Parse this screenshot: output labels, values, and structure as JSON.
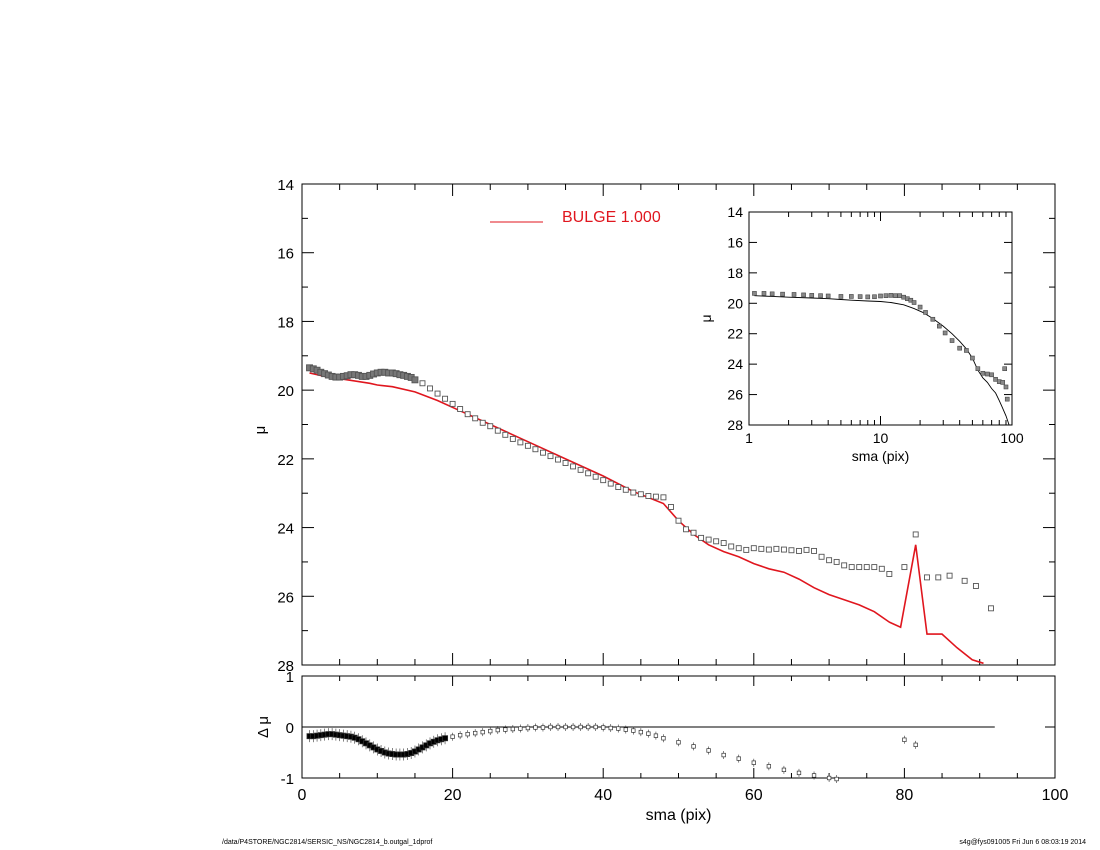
{
  "title": "SERSIC_NS/NGC2814_b.outgal",
  "footer": {
    "path": "/data/P4STORE/NGC2814/SERSIC_NS/NGC2814_b.outgal_1dprof",
    "stamp": "s4g@fys091005  Fri Jun  6 08:03:19 2014"
  },
  "colors": {
    "model": "#e0161e",
    "data": "#555555",
    "axis": "#000000",
    "residual_dense": "#000000"
  },
  "chart_data": [
    {
      "id": "main",
      "type": "scatter",
      "xlabel": "",
      "ylabel": "μ",
      "xlim": [
        0,
        100
      ],
      "ylim": [
        28,
        14
      ],
      "xticks": [
        "0",
        "20",
        "40",
        "60",
        "80",
        "100"
      ],
      "yticks": [
        "14",
        "16",
        "18",
        "20",
        "22",
        "24",
        "26",
        "28"
      ],
      "legend": {
        "label": "BULGE  1.000",
        "placement": "top"
      },
      "series": [
        {
          "name": "BULGE  1.000",
          "kind": "line",
          "x": [
            1,
            3,
            6,
            9,
            10,
            12,
            15,
            18,
            21,
            25,
            30,
            35,
            40,
            44,
            48,
            50,
            52,
            54,
            56,
            58,
            60,
            62,
            64,
            66,
            68,
            70,
            72,
            74,
            76,
            78,
            79.5,
            81.5,
            83,
            85,
            87,
            89,
            90.5
          ],
          "y": [
            19.5,
            19.6,
            19.7,
            19.8,
            19.85,
            19.9,
            20.05,
            20.3,
            20.6,
            21.0,
            21.5,
            22.0,
            22.5,
            22.95,
            23.3,
            23.8,
            24.2,
            24.5,
            24.7,
            24.85,
            25.05,
            25.2,
            25.3,
            25.5,
            25.75,
            25.95,
            26.1,
            26.25,
            26.45,
            26.75,
            26.9,
            24.5,
            27.1,
            27.1,
            27.5,
            27.85,
            27.95
          ]
        },
        {
          "name": "",
          "kind": "points",
          "x": [
            1,
            1.5,
            2,
            2.5,
            3,
            3.5,
            4,
            4.5,
            5,
            5.5,
            6,
            6.5,
            7,
            7.5,
            8,
            8.5,
            9,
            9.5,
            10,
            10.5,
            11,
            11.5,
            12,
            12.5,
            13,
            13.5,
            14,
            14.5,
            15,
            16,
            17,
            18,
            19,
            20,
            21,
            22,
            23,
            24,
            25,
            26,
            27,
            28,
            29,
            30,
            31,
            32,
            33,
            34,
            35,
            36,
            37,
            38,
            39,
            40,
            41,
            42,
            43,
            44,
            45,
            46,
            47,
            48,
            49,
            50,
            51,
            52,
            53,
            54,
            55,
            56,
            57,
            58,
            59,
            60,
            61,
            62,
            63,
            64,
            65,
            66,
            67,
            68,
            69,
            70,
            71,
            72,
            73,
            74,
            75,
            76,
            77,
            78,
            80,
            81.5,
            83,
            84.5,
            86,
            88,
            89.5,
            91.5
          ],
          "y": [
            19.35,
            19.38,
            19.42,
            19.48,
            19.52,
            19.56,
            19.6,
            19.62,
            19.62,
            19.6,
            19.58,
            19.55,
            19.55,
            19.57,
            19.6,
            19.6,
            19.57,
            19.53,
            19.5,
            19.48,
            19.48,
            19.5,
            19.5,
            19.52,
            19.55,
            19.57,
            19.6,
            19.63,
            19.7,
            19.8,
            19.95,
            20.1,
            20.25,
            20.4,
            20.55,
            20.7,
            20.82,
            20.95,
            21.05,
            21.18,
            21.3,
            21.42,
            21.52,
            21.62,
            21.72,
            21.82,
            21.92,
            22.02,
            22.12,
            22.22,
            22.32,
            22.42,
            22.52,
            22.62,
            22.72,
            22.82,
            22.9,
            22.98,
            23.03,
            23.08,
            23.1,
            23.12,
            23.4,
            23.8,
            24.05,
            24.15,
            24.3,
            24.35,
            24.4,
            24.45,
            24.55,
            24.6,
            24.65,
            24.6,
            24.62,
            24.64,
            24.62,
            24.64,
            24.66,
            24.68,
            24.65,
            24.68,
            24.85,
            24.95,
            25.0,
            25.1,
            25.15,
            25.15,
            25.15,
            25.15,
            25.2,
            25.35,
            25.15,
            24.2,
            25.45,
            25.45,
            25.4,
            25.55,
            25.7,
            26.35
          ]
        }
      ]
    },
    {
      "id": "inset",
      "type": "line",
      "xlabel": "sma (pix)",
      "ylabel": "μ",
      "xscale": "log",
      "xlim": [
        1,
        100
      ],
      "ylim": [
        28,
        14
      ],
      "xticks": [
        "1",
        "10",
        "100"
      ],
      "yticks": [
        "14",
        "16",
        "18",
        "20",
        "22",
        "24",
        "26",
        "28"
      ],
      "series": [
        {
          "name": "",
          "kind": "points",
          "x": [
            1.1,
            1.3,
            1.5,
            1.8,
            2.2,
            2.6,
            3,
            3.5,
            4,
            5,
            6,
            7,
            8,
            9,
            10,
            11,
            12,
            13,
            14,
            15,
            16,
            17,
            18,
            20,
            22,
            25,
            28,
            31,
            35,
            40,
            45,
            50,
            55,
            60,
            65,
            70,
            75,
            80,
            85,
            88,
            90,
            92
          ],
          "y": [
            19.35,
            19.35,
            19.38,
            19.4,
            19.42,
            19.45,
            19.48,
            19.5,
            19.52,
            19.55,
            19.55,
            19.56,
            19.58,
            19.57,
            19.52,
            19.5,
            19.48,
            19.5,
            19.5,
            19.6,
            19.7,
            19.8,
            19.95,
            20.25,
            20.6,
            21.05,
            21.5,
            21.95,
            22.45,
            22.95,
            23.1,
            23.6,
            24.3,
            24.6,
            24.65,
            24.7,
            25.0,
            25.15,
            25.2,
            24.3,
            25.5,
            26.3
          ]
        },
        {
          "name": "",
          "kind": "line",
          "x": [
            1.1,
            1.5,
            2,
            3,
            4,
            5,
            6,
            8,
            10,
            12,
            15,
            18,
            21,
            25,
            30,
            35,
            40,
            45,
            50,
            55,
            60,
            65,
            70,
            75,
            80,
            84,
            90,
            95
          ],
          "y": [
            19.5,
            19.55,
            19.6,
            19.65,
            19.7,
            19.75,
            19.8,
            19.85,
            19.88,
            19.95,
            20.1,
            20.35,
            20.6,
            21.0,
            21.5,
            22.0,
            22.5,
            23.0,
            23.6,
            24.4,
            24.9,
            25.2,
            25.6,
            25.9,
            26.4,
            26.8,
            27.4,
            28.0
          ]
        }
      ]
    },
    {
      "id": "residual",
      "type": "scatter",
      "xlabel": "sma (pix)",
      "ylabel": "Δ μ",
      "xlim": [
        0,
        100
      ],
      "ylim": [
        -1,
        1
      ],
      "xticks": [
        "0",
        "20",
        "40",
        "60",
        "80",
        "100"
      ],
      "yticks": [
        "-1",
        "0",
        "1"
      ],
      "reference_line": {
        "y": 0,
        "x": [
          0,
          92
        ]
      },
      "series": [
        {
          "name": "",
          "kind": "points",
          "x": [
            1,
            1.5,
            2,
            2.5,
            3,
            3.5,
            4,
            4.5,
            5,
            5.5,
            6,
            6.5,
            7,
            7.5,
            8,
            8.5,
            9,
            9.5,
            10,
            10.5,
            11,
            11.5,
            12,
            12.5,
            13,
            13.5,
            14,
            14.5,
            15,
            15.5,
            16,
            16.5,
            17,
            17.5,
            18,
            18.5,
            19,
            20,
            21,
            22,
            23,
            24,
            25,
            26,
            27,
            28,
            29,
            30,
            31,
            32,
            33,
            34,
            35,
            36,
            37,
            38,
            39,
            40,
            41,
            42,
            43,
            44,
            45,
            46,
            47,
            48,
            50,
            52,
            54,
            56,
            58,
            60,
            62,
            64,
            66,
            68,
            70,
            71,
            80,
            81.5
          ],
          "y": [
            -0.18,
            -0.18,
            -0.17,
            -0.16,
            -0.15,
            -0.14,
            -0.14,
            -0.15,
            -0.16,
            -0.17,
            -0.18,
            -0.19,
            -0.21,
            -0.24,
            -0.28,
            -0.32,
            -0.36,
            -0.4,
            -0.44,
            -0.47,
            -0.5,
            -0.52,
            -0.53,
            -0.54,
            -0.54,
            -0.54,
            -0.53,
            -0.51,
            -0.48,
            -0.44,
            -0.4,
            -0.36,
            -0.32,
            -0.29,
            -0.26,
            -0.24,
            -0.22,
            -0.19,
            -0.16,
            -0.14,
            -0.12,
            -0.1,
            -0.08,
            -0.06,
            -0.05,
            -0.04,
            -0.03,
            -0.02,
            -0.01,
            -0.01,
            0.0,
            0.0,
            0.0,
            0.0,
            0.0,
            0.0,
            0.0,
            -0.01,
            -0.02,
            -0.03,
            -0.05,
            -0.07,
            -0.1,
            -0.13,
            -0.17,
            -0.22,
            -0.3,
            -0.38,
            -0.46,
            -0.55,
            -0.62,
            -0.7,
            -0.77,
            -0.84,
            -0.9,
            -0.95,
            -1.0,
            -1.02,
            -0.25,
            -0.35
          ]
        }
      ]
    }
  ]
}
